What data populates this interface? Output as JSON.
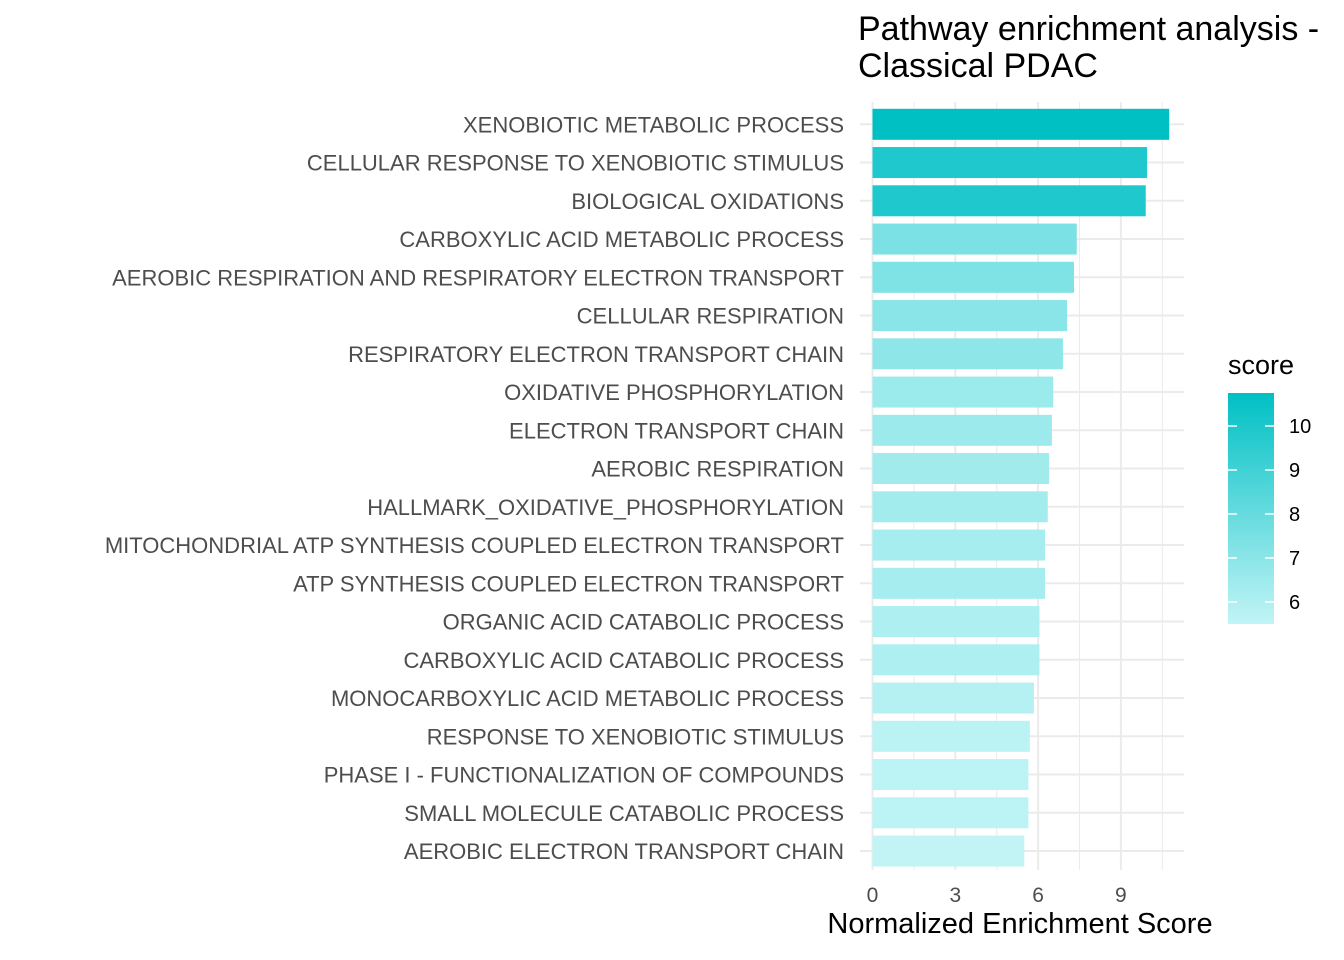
{
  "chart_data": {
    "type": "bar",
    "orientation": "horizontal",
    "title_lines": [
      "Pathway enrichment analysis -",
      "Classical PDAC"
    ],
    "xlabel": "Normalized Enrichment Score",
    "ylabel": "",
    "xlim": [
      0,
      11.3
    ],
    "x_ticks": [
      0,
      3,
      6,
      9
    ],
    "grid": true,
    "categories": [
      "XENOBIOTIC METABOLIC PROCESS",
      "CELLULAR RESPONSE TO XENOBIOTIC STIMULUS",
      "BIOLOGICAL OXIDATIONS",
      "CARBOXYLIC ACID METABOLIC PROCESS",
      "AEROBIC RESPIRATION AND RESPIRATORY ELECTRON TRANSPORT",
      "CELLULAR RESPIRATION",
      "RESPIRATORY ELECTRON TRANSPORT CHAIN",
      "OXIDATIVE PHOSPHORYLATION",
      "ELECTRON TRANSPORT CHAIN",
      "AEROBIC RESPIRATION",
      "HALLMARK_OXIDATIVE_PHOSPHORYLATION",
      "MITOCHONDRIAL ATP SYNTHESIS COUPLED ELECTRON TRANSPORT",
      "ATP SYNTHESIS COUPLED ELECTRON TRANSPORT",
      "ORGANIC ACID CATABOLIC PROCESS",
      "CARBOXYLIC ACID CATABOLIC PROCESS",
      "MONOCARBOXYLIC ACID METABOLIC PROCESS",
      "RESPONSE TO XENOBIOTIC STIMULUS",
      "PHASE I - FUNCTIONALIZATION OF COMPOUNDS",
      "SMALL MOLECULE CATABOLIC PROCESS",
      "AEROBIC ELECTRON TRANSPORT CHAIN"
    ],
    "values": [
      10.75,
      9.95,
      9.9,
      7.4,
      7.3,
      7.05,
      6.9,
      6.55,
      6.5,
      6.4,
      6.35,
      6.25,
      6.25,
      6.05,
      6.05,
      5.85,
      5.7,
      5.65,
      5.65,
      5.5
    ],
    "legend": {
      "title": "score",
      "position": "right",
      "ticks": [
        6,
        7,
        8,
        9,
        10
      ],
      "range": [
        5.5,
        10.75
      ],
      "color_low": "#c2f4f6",
      "color_high": "#00c0c4"
    },
    "colors": {
      "label": "#4d4d4d",
      "grid": "#ebebeb"
    }
  }
}
